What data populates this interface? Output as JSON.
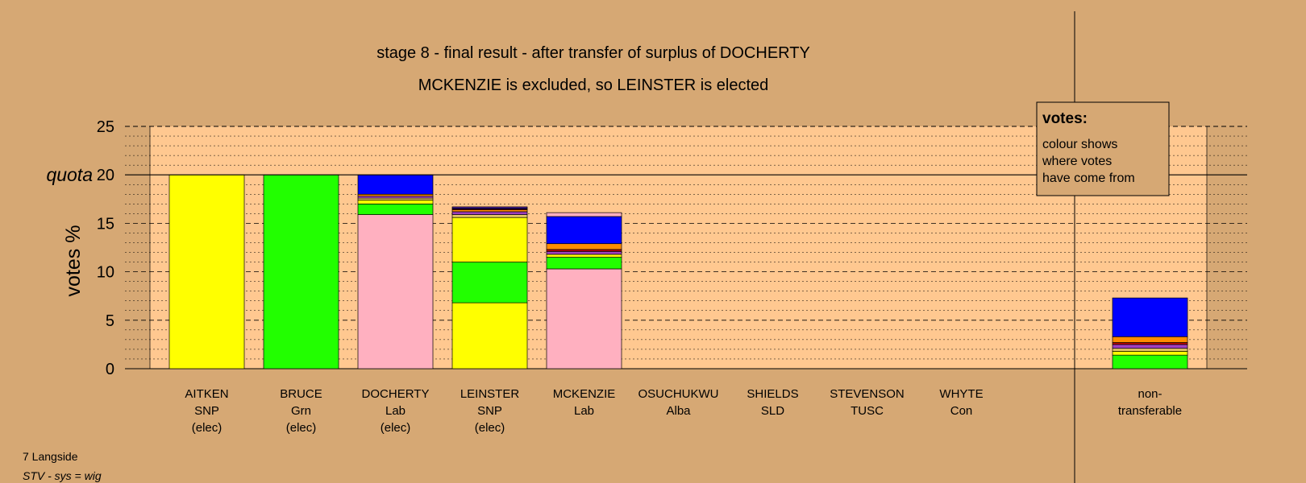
{
  "chart_data": {
    "type": "bar",
    "stacked": true,
    "title": "stage 8 - final result - after transfer of surplus of DOCHERTY",
    "subtitle": "MCKENZIE is excluded, so LEINSTER is elected",
    "ylabel": "votes %",
    "quota_label": "quota",
    "quota": 20,
    "ylim": [
      0,
      25
    ],
    "yticks": [
      0,
      5,
      10,
      15,
      20,
      25
    ],
    "grid": true,
    "legend": {
      "title": "votes:",
      "lines": [
        "colour shows",
        "where votes",
        "have come from"
      ],
      "placement": "top-right"
    },
    "colors": {
      "SNP": "#ffff00",
      "Grn": "#22ff00",
      "Lab": "#ffb0c0",
      "Alba": "#a040c0",
      "SLD": "#ff8c00",
      "TUSC": "#c00000",
      "Con": "#0000ff",
      "Other": "#e6c864"
    },
    "candidates": [
      {
        "name": "AITKEN",
        "party": "SNP",
        "status": "(elec)",
        "segments": [
          {
            "source": "SNP",
            "value": 20.0
          }
        ]
      },
      {
        "name": "BRUCE",
        "party": "Grn",
        "status": "(elec)",
        "segments": [
          {
            "source": "Grn",
            "value": 20.0
          }
        ]
      },
      {
        "name": "DOCHERTY",
        "party": "Lab",
        "status": "(elec)",
        "segments": [
          {
            "source": "Lab",
            "value": 15.9
          },
          {
            "source": "Grn",
            "value": 1.1
          },
          {
            "source": "SNP",
            "value": 0.4
          },
          {
            "source": "Other",
            "value": 0.2
          },
          {
            "source": "Alba",
            "value": 0.2
          },
          {
            "source": "SLD",
            "value": 0.2
          },
          {
            "source": "Con",
            "value": 2.0
          }
        ]
      },
      {
        "name": "LEINSTER",
        "party": "SNP",
        "status": "(elec)",
        "segments": [
          {
            "source": "SNP",
            "value": 6.8
          },
          {
            "source": "Grn",
            "value": 4.2
          },
          {
            "source": "SNP",
            "value": 4.6
          },
          {
            "source": "Other",
            "value": 0.3
          },
          {
            "source": "Alba",
            "value": 0.3
          },
          {
            "source": "SLD",
            "value": 0.2
          },
          {
            "source": "TUSC",
            "value": 0.1
          },
          {
            "source": "Con",
            "value": 0.1
          },
          {
            "source": "Alba",
            "value": 0.1
          }
        ]
      },
      {
        "name": "MCKENZIE",
        "party": "Lab",
        "status": "",
        "segments": [
          {
            "source": "Lab",
            "value": 10.3
          },
          {
            "source": "Grn",
            "value": 1.2
          },
          {
            "source": "SNP",
            "value": 0.3
          },
          {
            "source": "Alba",
            "value": 0.3
          },
          {
            "source": "TUSC",
            "value": 0.2
          },
          {
            "source": "SLD",
            "value": 0.6
          },
          {
            "source": "Con",
            "value": 2.8
          },
          {
            "source": "Lab",
            "value": 0.4
          }
        ]
      },
      {
        "name": "OSUCHUKWU",
        "party": "Alba",
        "status": "",
        "segments": []
      },
      {
        "name": "SHIELDS",
        "party": "SLD",
        "status": "",
        "segments": []
      },
      {
        "name": "STEVENSON",
        "party": "TUSC",
        "status": "",
        "segments": []
      },
      {
        "name": "WHYTE",
        "party": "Con",
        "status": "",
        "segments": []
      }
    ],
    "non_transferable": {
      "label_lines": [
        "non-",
        "transferable"
      ],
      "segments": [
        {
          "source": "Grn",
          "value": 1.4
        },
        {
          "source": "SNP",
          "value": 0.4
        },
        {
          "source": "Other",
          "value": 0.3
        },
        {
          "source": "Alba",
          "value": 0.4
        },
        {
          "source": "TUSC",
          "value": 0.2
        },
        {
          "source": "SLD",
          "value": 0.6
        },
        {
          "source": "Con",
          "value": 4.0
        }
      ]
    }
  },
  "footer": {
    "ward": "7 Langside",
    "system": "STV - sys = wig"
  }
}
